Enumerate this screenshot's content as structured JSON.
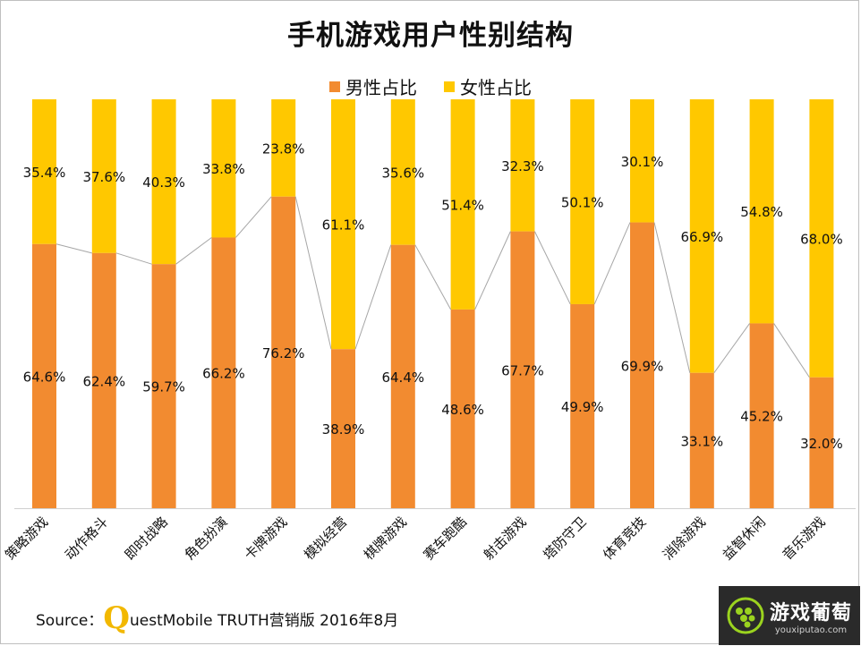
{
  "chart_data": {
    "type": "bar",
    "stacked": true,
    "percent": true,
    "title": "手机游戏用户性别结构",
    "categories": [
      "策略游戏",
      "动作格斗",
      "即时战略",
      "角色扮演",
      "卡牌游戏",
      "模拟经营",
      "棋牌游戏",
      "赛车跑酷",
      "射击游戏",
      "塔防守卫",
      "体育竞技",
      "消除游戏",
      "益智休闲",
      "音乐游戏"
    ],
    "series": [
      {
        "name": "男性占比",
        "color": "#f28b30",
        "values": [
          64.6,
          62.4,
          59.7,
          66.2,
          76.2,
          38.9,
          64.4,
          48.6,
          67.7,
          49.9,
          69.9,
          33.1,
          45.2,
          32.0
        ]
      },
      {
        "name": "女性占比",
        "color": "#ffc800",
        "values": [
          35.4,
          37.6,
          40.3,
          33.8,
          23.8,
          61.1,
          35.6,
          51.4,
          32.3,
          50.1,
          30.1,
          66.9,
          54.8,
          68.0
        ]
      }
    ],
    "ylim": [
      0,
      100
    ],
    "legend_position": "top",
    "grid": false,
    "connector_lines": true
  },
  "footer": {
    "source_prefix": "Source：",
    "source_q": "Q",
    "source_text": "uestMobile TRUTH营销版 2016年8月"
  },
  "watermark": {
    "text": "游戏葡萄",
    "subtext": "youxiputao.com"
  }
}
